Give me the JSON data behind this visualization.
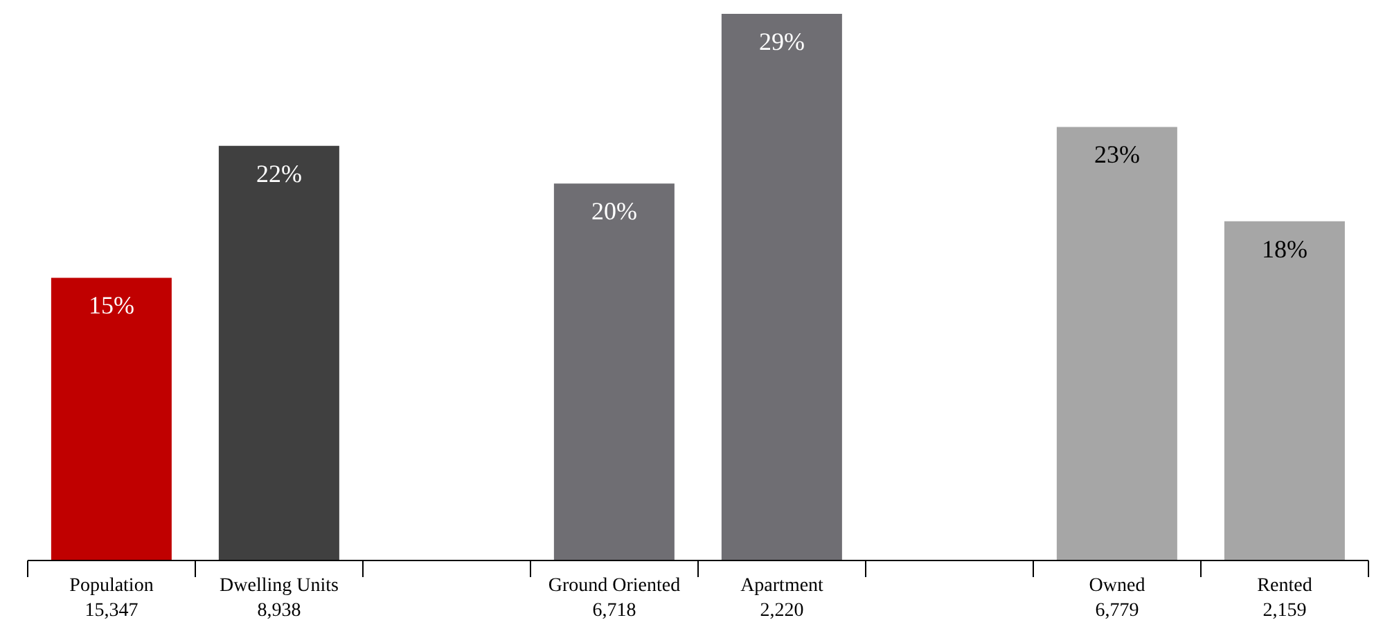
{
  "chart_data": {
    "type": "bar",
    "categories": [
      "Population\n15,347",
      "Dwelling Units\n8,938",
      null,
      "Ground Oriented\n6,718",
      "Apartment\n2,220",
      null,
      "Owned\n6,779",
      "Rented\n2,159"
    ],
    "values": [
      15,
      22,
      null,
      20,
      29,
      null,
      23,
      18
    ],
    "colors": [
      "#c00000",
      "#404040",
      null,
      "#6f6e73",
      "#6f6e73",
      null,
      "#a6a6a6",
      "#a6a6a6"
    ],
    "value_labels": [
      "15%",
      "22%",
      null,
      "20%",
      "29%",
      null,
      "23%",
      "18%"
    ],
    "tick_labels": "x"
  }
}
